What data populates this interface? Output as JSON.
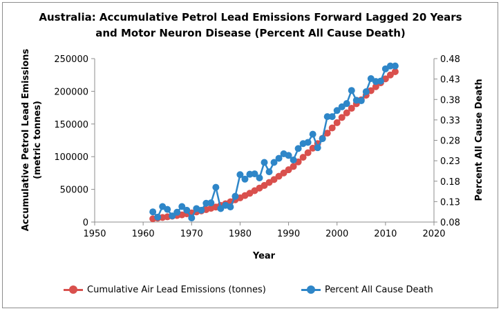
{
  "chart_data": {
    "type": "line",
    "title_line1": "Australia: Accumulative Petrol Lead Emissions Forward Lagged 20 Years",
    "title_line2": "and Motor Neuron Disease (Percent All Cause Death)",
    "xlabel": "Year",
    "ylabel_left_line1": "Accumulative Petrol Lead Emissions",
    "ylabel_left_line2": "(metric tonnes)",
    "ylabel_right": "Percent All Cause Death",
    "xlim": [
      1950,
      2020
    ],
    "x_ticks": [
      "1950",
      "1960",
      "1970",
      "1980",
      "1990",
      "2000",
      "2010",
      "2020"
    ],
    "ylim_left": [
      0,
      250000
    ],
    "y_left_ticks": [
      "0",
      "50000",
      "100000",
      "150000",
      "200000",
      "250000"
    ],
    "ylim_right": [
      0.08,
      0.48
    ],
    "y_right_ticks": [
      "0.08",
      "0.13",
      "0.18",
      "0.23",
      "0.28",
      "0.33",
      "0.38",
      "0.43",
      "0.48"
    ],
    "grid": false,
    "legend_position": "bottom",
    "series": [
      {
        "name": "Cumulative Air Lead Emissions (tonnes)",
        "axis": "left",
        "color": "#d9504d",
        "x": [
          1962,
          1963,
          1964,
          1965,
          1966,
          1967,
          1968,
          1969,
          1970,
          1971,
          1972,
          1973,
          1974,
          1975,
          1976,
          1977,
          1978,
          1979,
          1980,
          1981,
          1982,
          1983,
          1984,
          1985,
          1986,
          1987,
          1988,
          1989,
          1990,
          1991,
          1992,
          1993,
          1994,
          1995,
          1996,
          1997,
          1998,
          1999,
          2000,
          2001,
          2002,
          2003,
          2004,
          2005,
          2006,
          2007,
          2008,
          2009,
          2010,
          2011,
          2012
        ],
        "values": [
          5000,
          6000,
          7000,
          8000,
          9000,
          10000,
          11000,
          12500,
          14000,
          15500,
          17000,
          19000,
          21000,
          23000,
          25500,
          28000,
          31000,
          34000,
          37000,
          40500,
          44000,
          48000,
          52000,
          56000,
          60500,
          65000,
          70000,
          75000,
          80000,
          85000,
          92000,
          99000,
          106000,
          113000,
          120000,
          128000,
          136000,
          144000,
          152000,
          160000,
          167000,
          174000,
          181000,
          187000,
          194000,
          201000,
          207000,
          213000,
          219000,
          225000,
          230000
        ]
      },
      {
        "name": "Percent All Cause Death",
        "axis": "right",
        "color": "#2e86c8",
        "x": [
          1962,
          1963,
          1964,
          1965,
          1966,
          1967,
          1968,
          1969,
          1970,
          1971,
          1972,
          1973,
          1974,
          1975,
          1976,
          1977,
          1978,
          1979,
          1980,
          1981,
          1982,
          1983,
          1984,
          1985,
          1986,
          1987,
          1988,
          1989,
          1990,
          1991,
          1992,
          1993,
          1994,
          1995,
          1996,
          1997,
          1998,
          1999,
          2000,
          2001,
          2002,
          2003,
          2004,
          2005,
          2006,
          2007,
          2008,
          2009,
          2010,
          2011,
          2012
        ],
        "values": [
          0.105,
          0.092,
          0.118,
          0.111,
          0.095,
          0.104,
          0.118,
          0.109,
          0.09,
          0.113,
          0.109,
          0.126,
          0.127,
          0.165,
          0.113,
          0.121,
          0.117,
          0.143,
          0.196,
          0.185,
          0.197,
          0.198,
          0.188,
          0.226,
          0.203,
          0.226,
          0.236,
          0.247,
          0.243,
          0.232,
          0.26,
          0.272,
          0.275,
          0.295,
          0.262,
          0.284,
          0.338,
          0.338,
          0.353,
          0.362,
          0.37,
          0.402,
          0.378,
          0.377,
          0.399,
          0.431,
          0.424,
          0.425,
          0.455,
          0.462,
          0.462
        ]
      }
    ]
  }
}
